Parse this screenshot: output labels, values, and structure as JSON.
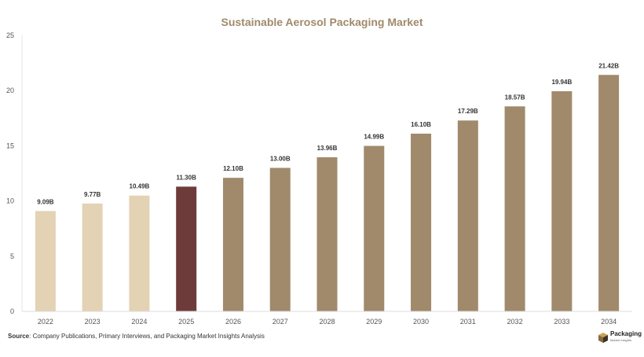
{
  "source": {
    "label": "Source",
    "text": ": Company Publications, Primary Interviews, and Packaging Market Insights Analysis"
  },
  "logo": {
    "name": "Packaging",
    "subtitle": "Market Insights",
    "icon": "box-icon"
  },
  "colors": {
    "historical": "#e3d2b4",
    "current": "#6e3b3b",
    "forecast": "#a08a6b",
    "title": "#a08a6b"
  },
  "chart_data": {
    "type": "bar",
    "title": "Sustainable Aerosol Packaging Market",
    "xlabel": "",
    "ylabel": "",
    "categories": [
      "2022",
      "2023",
      "2024",
      "2025",
      "2026",
      "2027",
      "2028",
      "2029",
      "2030",
      "2031",
      "2032",
      "2033",
      "2034"
    ],
    "values": [
      9.09,
      9.77,
      10.49,
      11.3,
      12.1,
      13.0,
      13.96,
      14.99,
      16.1,
      17.29,
      18.57,
      19.94,
      21.42
    ],
    "data_labels": [
      "9.09B",
      "9.77B",
      "10.49B",
      "11.30B",
      "12.10B",
      "13.00B",
      "13.96B",
      "14.99B",
      "16.10B",
      "17.29B",
      "18.57B",
      "19.94B",
      "21.42B"
    ],
    "bar_groups": [
      "historical",
      "historical",
      "historical",
      "current",
      "forecast",
      "forecast",
      "forecast",
      "forecast",
      "forecast",
      "forecast",
      "forecast",
      "forecast",
      "forecast"
    ],
    "ylim": [
      0,
      25
    ],
    "yticks": [
      0,
      5,
      10,
      15,
      20,
      25
    ],
    "grid": false,
    "legend": "none"
  }
}
